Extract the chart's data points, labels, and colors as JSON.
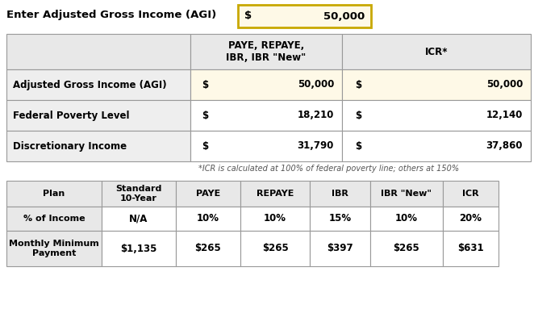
{
  "bg_color": "#ffffff",
  "input_label": "Enter Adjusted Gross Income (AGI)",
  "input_dollar": "$",
  "input_value": "50,000",
  "input_box_color": "#fef9e7",
  "input_box_border": "#c8a800",
  "top_table": {
    "col_headers": [
      "PAYE, REPAYE,\nIBR, IBR \"New\"",
      "ICR*"
    ],
    "row_labels": [
      "Adjusted Gross Income (AGI)",
      "Federal Poverty Level",
      "Discretionary Income"
    ],
    "col1_dollar": [
      "$",
      "$",
      "$"
    ],
    "col1_values": [
      "50,000",
      "18,210",
      "31,790"
    ],
    "col2_dollar": [
      "$",
      "$",
      "$"
    ],
    "col2_values": [
      "50,000",
      "12,140",
      "37,860"
    ],
    "agi_row_bg": "#fef9e7",
    "other_row_bg": "#ffffff",
    "label_bg": "#eeeeee",
    "header_bg": "#e8e8e8",
    "border_color": "#999999"
  },
  "footnote": "*ICR is calculated at 100% of federal poverty line; others at 150%",
  "bottom_table": {
    "col_headers": [
      "Plan",
      "Standard\n10-Year",
      "PAYE",
      "REPAYE",
      "IBR",
      "IBR \"New\"",
      "ICR"
    ],
    "header_bg": "#e8e8e8",
    "row1_label": "% of Income",
    "row1_values": [
      "N/A",
      "10%",
      "10%",
      "15%",
      "10%",
      "20%"
    ],
    "row2_label": "Monthly Minimum\nPayment",
    "row2_values": [
      "$1,135",
      "$265",
      "$265",
      "$397",
      "$265",
      "$631"
    ],
    "row1_bg": "#ffffff",
    "row2_bg": "#ffffff",
    "label_bg": "#e8e8e8",
    "border_color": "#999999"
  }
}
